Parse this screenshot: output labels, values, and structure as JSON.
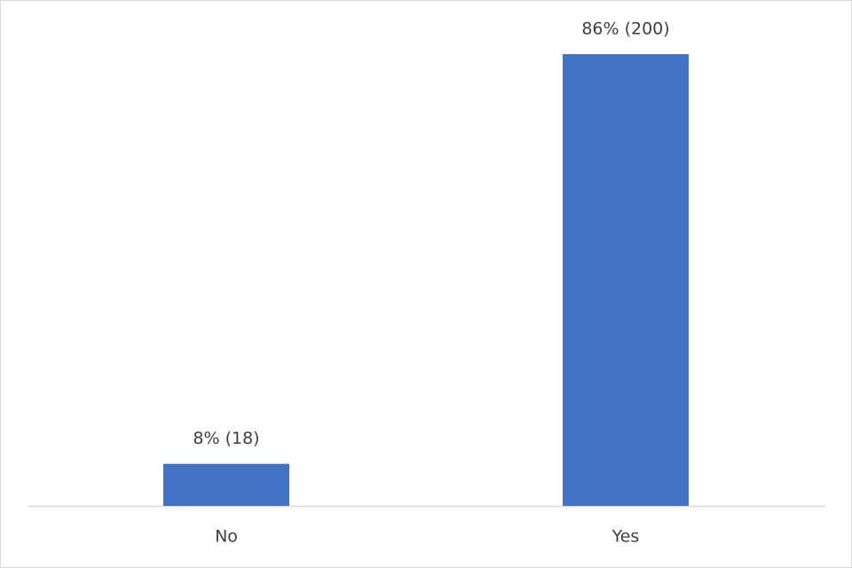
{
  "chart_data": {
    "type": "bar",
    "categories": [
      "No",
      "Yes"
    ],
    "values": [
      8,
      86
    ],
    "value_labels": [
      "8% (18)",
      "86% (200)"
    ],
    "color": "#4472c4"
  }
}
